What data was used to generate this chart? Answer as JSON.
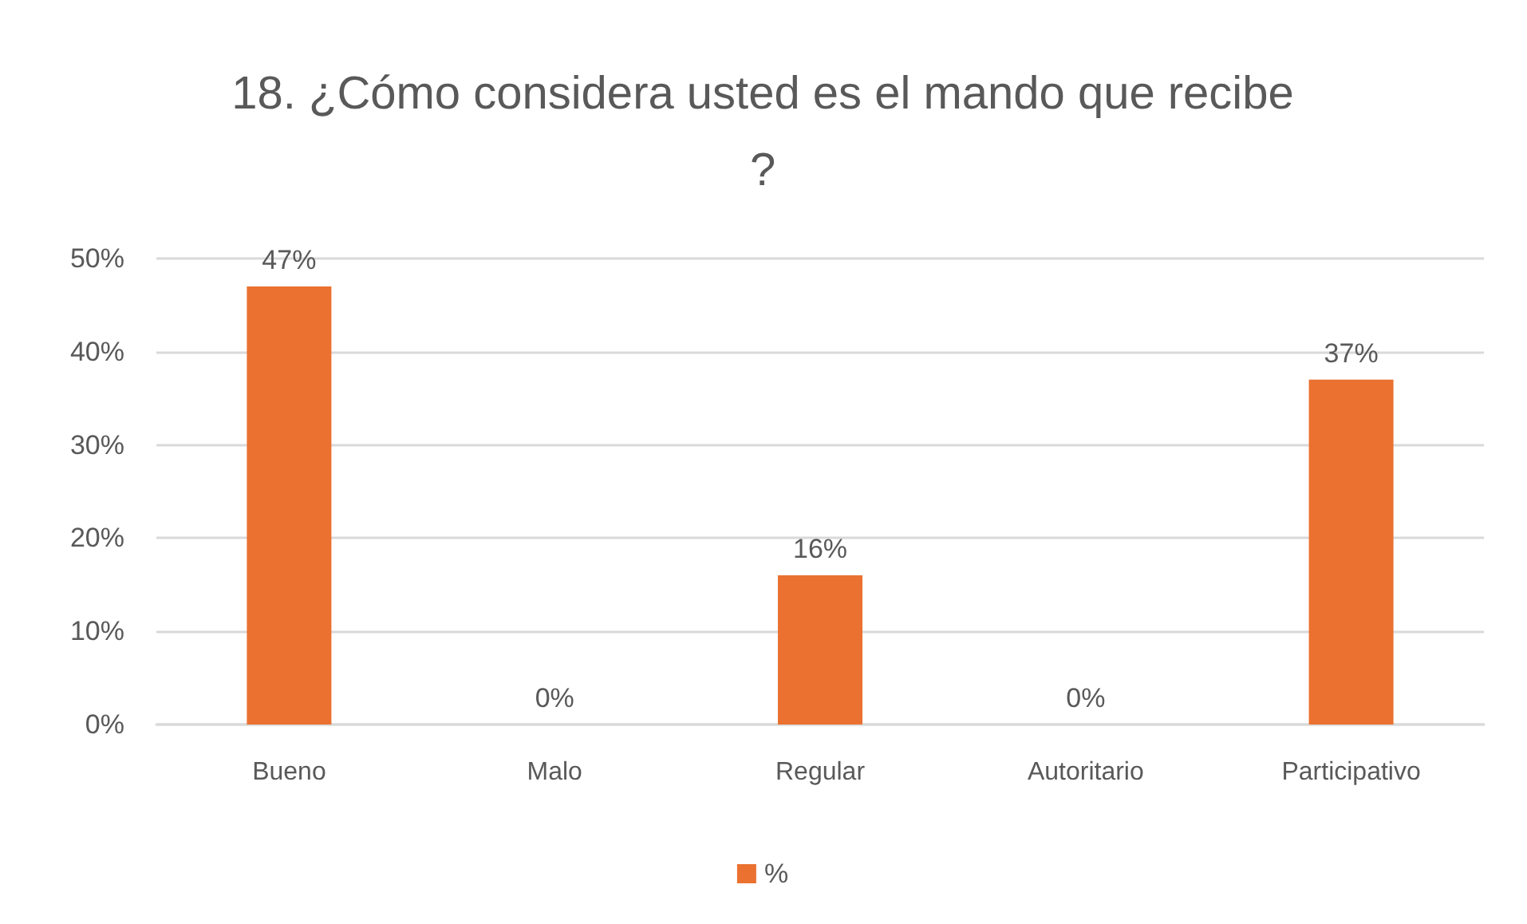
{
  "chart_data": {
    "type": "bar",
    "title": "18. ¿Cómo considera usted es el mando que recibe?",
    "categories": [
      "Bueno",
      "Malo",
      "Regular",
      "Autoritario",
      "Participativo"
    ],
    "series": [
      {
        "name": "%",
        "color": "#ea7130",
        "values": [
          47,
          0,
          16,
          0,
          37
        ],
        "value_labels": [
          "47%",
          "0%",
          "16%",
          "0%",
          "37%"
        ]
      }
    ],
    "ylim": [
      0,
      50
    ],
    "yticks": [
      {
        "value": 0,
        "label": "0%"
      },
      {
        "value": 10,
        "label": "10%"
      },
      {
        "value": 20,
        "label": "20%"
      },
      {
        "value": 30,
        "label": "30%"
      },
      {
        "value": 40,
        "label": "40%"
      },
      {
        "value": 50,
        "label": "50%"
      }
    ],
    "grid": "y",
    "legend": "bottom"
  }
}
